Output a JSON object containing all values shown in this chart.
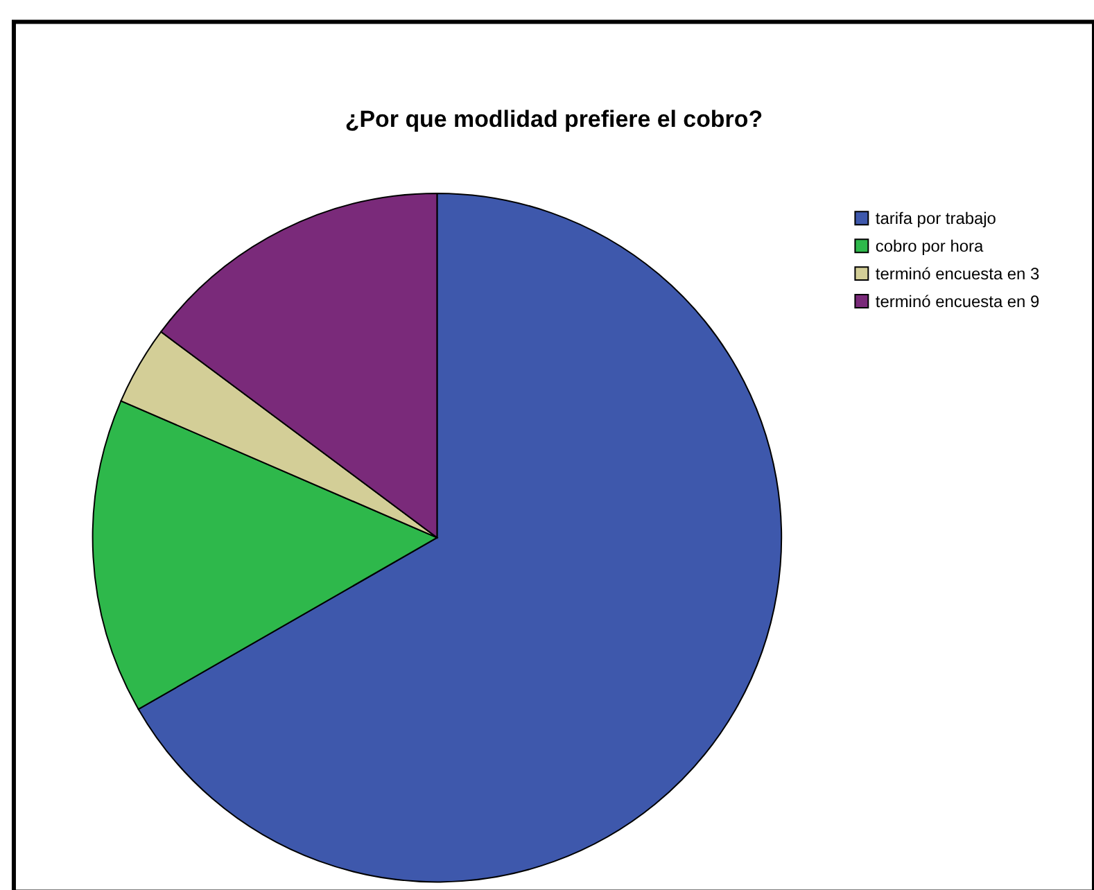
{
  "chart_data": {
    "type": "pie",
    "title": "¿Por que modlidad prefiere el cobro?",
    "categories": [
      "tarifa por trabajo",
      "cobro por hora",
      "terminó encuesta en 3",
      "terminó encuesta en 9"
    ],
    "values": [
      66.7,
      14.8,
      3.7,
      14.8
    ],
    "colors": [
      "#3e58ac",
      "#2eb84b",
      "#d3ce97",
      "#7a2a7a"
    ],
    "legend": "top right"
  }
}
